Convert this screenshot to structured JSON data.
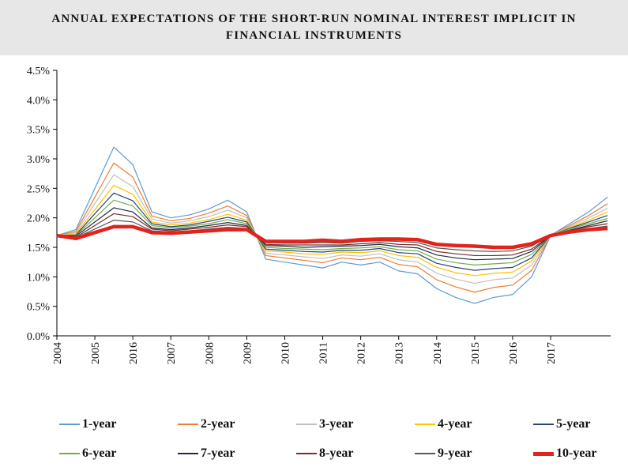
{
  "chart_data": {
    "type": "line",
    "title": "ANNUAL EXPECTATIONS OF THE SHORT-RUN NOMINAL INTEREST IMPLICIT IN FINANCIAL INSTRUMENTS",
    "categories": [
      "2004",
      null,
      "2005",
      null,
      "2016",
      null,
      "2007",
      null,
      "2008",
      null,
      "2009",
      null,
      "2010",
      null,
      "2011",
      null,
      "2012",
      null,
      "2013",
      null,
      "2014",
      null,
      "2015",
      null,
      "2016",
      null,
      "2017",
      null,
      null,
      null
    ],
    "ylim": [
      0,
      4.5
    ],
    "yticks": [
      {
        "value": 0,
        "label": "0.0%"
      },
      {
        "value": 0.5,
        "label": "0.5%"
      },
      {
        "value": 1,
        "label": "1.0%"
      },
      {
        "value": 1.5,
        "label": "1.5%"
      },
      {
        "value": 2,
        "label": "2.0%"
      },
      {
        "value": 2.5,
        "label": "2.5%"
      },
      {
        "value": 3,
        "label": "3.0%"
      },
      {
        "value": 3.5,
        "label": "3.5%"
      },
      {
        "value": 4,
        "label": "4.0%"
      },
      {
        "value": 4.5,
        "label": "4.5%"
      }
    ],
    "series": [
      {
        "name": "1-year",
        "color": "#5b9bd5",
        "values": [
          1.7,
          1.8,
          2.5,
          3.2,
          2.9,
          2.1,
          2.0,
          2.05,
          2.15,
          2.3,
          2.1,
          1.3,
          1.25,
          1.2,
          1.15,
          1.25,
          1.2,
          1.25,
          1.1,
          1.05,
          0.8,
          0.65,
          0.55,
          0.65,
          0.7,
          1.0,
          1.7,
          1.9,
          2.1,
          2.35
        ]
      },
      {
        "name": "2-year",
        "color": "#ed7d31",
        "values": [
          1.7,
          1.77,
          2.35,
          2.93,
          2.69,
          2.03,
          1.95,
          1.99,
          2.08,
          2.2,
          2.04,
          1.36,
          1.32,
          1.28,
          1.24,
          1.32,
          1.29,
          1.33,
          1.21,
          1.17,
          0.95,
          0.83,
          0.74,
          0.82,
          0.86,
          1.11,
          1.7,
          1.87,
          2.04,
          2.24
        ]
      },
      {
        "name": "3-year",
        "color": "#bfbfbf",
        "values": [
          1.7,
          1.75,
          2.24,
          2.73,
          2.53,
          1.98,
          1.91,
          1.95,
          2.02,
          2.13,
          2.0,
          1.4,
          1.37,
          1.34,
          1.31,
          1.37,
          1.35,
          1.39,
          1.29,
          1.25,
          1.06,
          0.96,
          0.89,
          0.95,
          0.98,
          1.2,
          1.7,
          1.85,
          2.0,
          2.16
        ]
      },
      {
        "name": "4-year",
        "color": "#ffc000",
        "values": [
          1.7,
          1.73,
          2.14,
          2.55,
          2.4,
          1.93,
          1.88,
          1.91,
          1.97,
          2.06,
          1.96,
          1.44,
          1.42,
          1.39,
          1.38,
          1.42,
          1.41,
          1.44,
          1.36,
          1.33,
          1.16,
          1.07,
          1.02,
          1.06,
          1.08,
          1.27,
          1.7,
          1.83,
          1.96,
          2.1
        ]
      },
      {
        "name": "5-year",
        "color": "#264478",
        "values": [
          1.7,
          1.71,
          2.07,
          2.42,
          2.29,
          1.9,
          1.85,
          1.88,
          1.94,
          2.01,
          1.93,
          1.47,
          1.45,
          1.43,
          1.42,
          1.45,
          1.45,
          1.48,
          1.41,
          1.39,
          1.23,
          1.16,
          1.11,
          1.14,
          1.16,
          1.32,
          1.7,
          1.82,
          1.93,
          2.04
        ]
      },
      {
        "name": "6-year",
        "color": "#70ad47",
        "values": [
          1.7,
          1.7,
          2.0,
          2.3,
          2.2,
          1.87,
          1.83,
          1.86,
          1.9,
          1.97,
          1.9,
          1.5,
          1.48,
          1.47,
          1.46,
          1.48,
          1.49,
          1.51,
          1.46,
          1.44,
          1.3,
          1.24,
          1.2,
          1.22,
          1.24,
          1.38,
          1.7,
          1.81,
          1.9,
          1.99
        ]
      },
      {
        "name": "7-year",
        "color": "#1f2a44",
        "values": [
          1.7,
          1.69,
          1.93,
          2.17,
          2.1,
          1.83,
          1.8,
          1.83,
          1.87,
          1.92,
          1.87,
          1.53,
          1.52,
          1.5,
          1.51,
          1.52,
          1.53,
          1.55,
          1.51,
          1.49,
          1.37,
          1.32,
          1.29,
          1.3,
          1.31,
          1.43,
          1.7,
          1.79,
          1.87,
          1.95
        ]
      },
      {
        "name": "8-year",
        "color": "#7b2c2c",
        "values": [
          1.7,
          1.67,
          1.87,
          2.07,
          2.02,
          1.81,
          1.78,
          1.81,
          1.84,
          1.88,
          1.85,
          1.55,
          1.54,
          1.54,
          1.54,
          1.54,
          1.56,
          1.58,
          1.55,
          1.54,
          1.43,
          1.39,
          1.36,
          1.36,
          1.37,
          1.47,
          1.7,
          1.78,
          1.85,
          1.9
        ]
      },
      {
        "name": "9-year",
        "color": "#595959",
        "values": [
          1.7,
          1.66,
          1.81,
          1.96,
          1.93,
          1.78,
          1.76,
          1.78,
          1.81,
          1.84,
          1.82,
          1.58,
          1.57,
          1.57,
          1.58,
          1.57,
          1.6,
          1.61,
          1.6,
          1.58,
          1.49,
          1.46,
          1.44,
          1.43,
          1.44,
          1.52,
          1.7,
          1.77,
          1.82,
          1.86
        ]
      },
      {
        "name": "10-year",
        "color": "#e3221c",
        "values": [
          1.7,
          1.65,
          1.75,
          1.85,
          1.85,
          1.75,
          1.74,
          1.76,
          1.78,
          1.8,
          1.8,
          1.6,
          1.6,
          1.6,
          1.62,
          1.6,
          1.63,
          1.64,
          1.64,
          1.63,
          1.55,
          1.53,
          1.52,
          1.5,
          1.5,
          1.56,
          1.7,
          1.76,
          1.8,
          1.82
        ]
      }
    ]
  }
}
